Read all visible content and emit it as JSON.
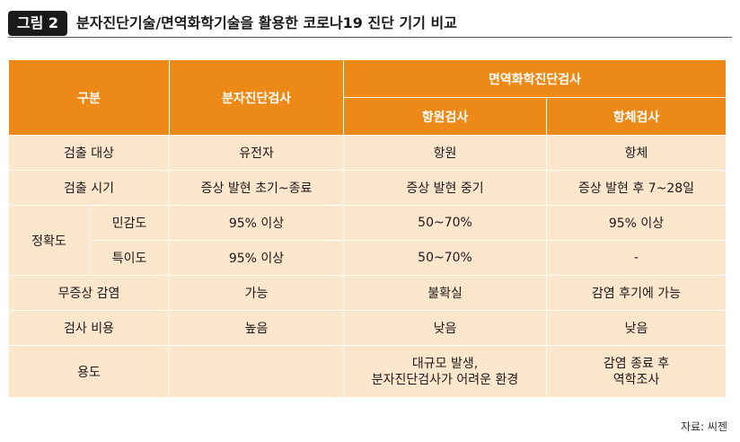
{
  "figure": {
    "badge": "그림 2",
    "title": "분자진단기술/면역화학기술을 활용한 코로나19 진단 기기 비교"
  },
  "table": {
    "header": {
      "category": "구분",
      "molecular": "분자진단검사",
      "immuno": "면역화학진단검사",
      "antigen": "항원검사",
      "antibody": "항체검사"
    },
    "rows": {
      "target": {
        "label": "검출 대상",
        "molecular": "유전자",
        "antigen": "항원",
        "antibody": "항체"
      },
      "timing": {
        "label": "검출 시기",
        "molecular": "증상 발현 초기~종료",
        "antigen": "증상 발현 중기",
        "antibody": "증상 발현 후 7~28일"
      },
      "accuracy": {
        "label": "정확도"
      },
      "sensitivity": {
        "label": "민감도",
        "molecular": "95% 이상",
        "antigen": "50~70%",
        "antibody": "95% 이상"
      },
      "specificity": {
        "label": "특이도",
        "molecular": "95% 이상",
        "antigen": "50~70%",
        "antibody": "-"
      },
      "asymptomatic": {
        "label": "무증상 감염",
        "molecular": "가능",
        "antigen": "불확실",
        "antibody": "감염 후기에 가능"
      },
      "cost": {
        "label": "검사 비용",
        "molecular": "높음",
        "antigen": "낮음",
        "antibody": "낮음"
      },
      "usage": {
        "label": "용도",
        "molecular": "",
        "antigen_line1": "대규모 발생,",
        "antigen_line2": "분자진단검사가 어려운 환경",
        "antibody_line1": "감염 종료 후",
        "antibody_line2": "역학조사"
      }
    }
  },
  "source": "자료: 씨젠"
}
